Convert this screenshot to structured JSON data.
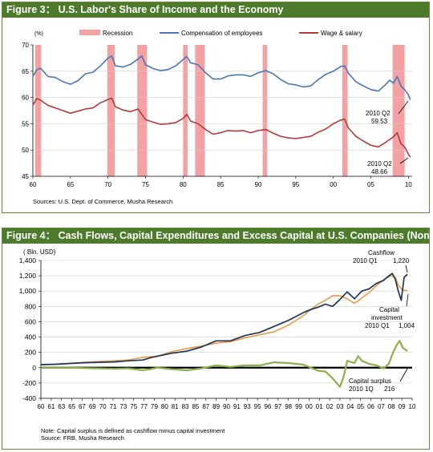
{
  "figure3": {
    "label": "Figure 3：",
    "title": "U.S. Labor's Share of Income and the Economy",
    "unit": "(%)",
    "source": "Sources: U.S. Dept. of Commerce, Musha Research"
  },
  "figure4": {
    "label": "Figure 4：",
    "title": "Cash Flows, Capital Expenditures and Excess Capital at U.S. Companies (Non-financial)",
    "unit": "( Bln. USD)",
    "note": "Note: Capital surplus is defined as cashflow minus capital investment",
    "source": "Source: FRB, Musha Research"
  },
  "colors": {
    "header_bg": "#4e7a2b",
    "recession": "#f4a1a3",
    "compensation": "#4a76b8",
    "wage": "#b43a3a",
    "cashflow": "#1f3556",
    "capital_investment": "#e6a050",
    "capital_surplus": "#8ab14a"
  },
  "chart_data": [
    {
      "type": "line",
      "title": "U.S. Labor's Share of Income and the Economy",
      "ylabel": "(%)",
      "ylim": [
        45,
        70
      ],
      "yticks": [
        "45",
        "50",
        "55",
        "60",
        "65",
        "70"
      ],
      "xlim": [
        1960,
        2010.5
      ],
      "xticks": [
        {
          "x": 1960,
          "label": "60"
        },
        {
          "x": 1965,
          "label": "65"
        },
        {
          "x": 1970,
          "label": "70"
        },
        {
          "x": 1975,
          "label": "75"
        },
        {
          "x": 1980,
          "label": "80"
        },
        {
          "x": 1985,
          "label": "85"
        },
        {
          "x": 1990,
          "label": "90"
        },
        {
          "x": 1995,
          "label": "95"
        },
        {
          "x": 2000,
          "label": "00"
        },
        {
          "x": 2005,
          "label": "05"
        },
        {
          "x": 2010,
          "label": "10"
        }
      ],
      "legend": [
        "Recession",
        "Compensation of employees",
        "Wage & salary"
      ],
      "legend_position": "top",
      "recessions": [
        [
          1960.3,
          1961.1
        ],
        [
          1969.9,
          1970.9
        ],
        [
          1973.9,
          1975.2
        ],
        [
          1980.0,
          1980.6
        ],
        [
          1981.6,
          1982.9
        ],
        [
          1990.6,
          1991.2
        ],
        [
          2001.2,
          2001.9
        ],
        [
          2007.9,
          2009.5
        ]
      ],
      "series": [
        {
          "name": "Compensation of employees",
          "x": [
            1960,
            1960.5,
            1961,
            1962,
            1963,
            1964,
            1965,
            1966,
            1967,
            1968,
            1969,
            1970,
            1970.5,
            1971,
            1972,
            1973,
            1974,
            1974.5,
            1975,
            1976,
            1977,
            1978,
            1979,
            1980,
            1980.5,
            1981,
            1982,
            1983,
            1984,
            1985,
            1986,
            1987,
            1988,
            1989,
            1990,
            1991,
            1992,
            1993,
            1994,
            1995,
            1996,
            1997,
            1998,
            1999,
            2000,
            2001,
            2001.5,
            2002,
            2003,
            2004,
            2005,
            2006,
            2007,
            2007.5,
            2008,
            2008.5,
            2009,
            2009.5,
            2010,
            2010.25
          ],
          "y": [
            64.0,
            65.2,
            65.6,
            64.0,
            63.8,
            63.0,
            62.5,
            63.2,
            64.5,
            64.8,
            66.0,
            67.5,
            67.9,
            66.0,
            65.8,
            66.3,
            67.3,
            67.9,
            66.2,
            65.5,
            65.1,
            65.3,
            66.0,
            67.2,
            67.8,
            66.6,
            66.2,
            64.7,
            63.5,
            63.5,
            64.1,
            64.3,
            64.3,
            64.0,
            64.7,
            65.1,
            64.5,
            63.4,
            62.6,
            62.4,
            62.0,
            62.2,
            63.4,
            64.4,
            65.0,
            65.9,
            66.0,
            64.6,
            63.0,
            62.2,
            61.5,
            61.2,
            62.5,
            63.3,
            62.7,
            64.0,
            62.2,
            61.5,
            60.5,
            59.53
          ]
        },
        {
          "name": "Wage & salary",
          "x": [
            1960,
            1960.5,
            1961,
            1962,
            1963,
            1964,
            1965,
            1966,
            1967,
            1968,
            1969,
            1970,
            1970.5,
            1971,
            1972,
            1973,
            1974,
            1975,
            1976,
            1977,
            1978,
            1979,
            1980,
            1980.5,
            1981,
            1982,
            1983,
            1984,
            1985,
            1986,
            1987,
            1988,
            1989,
            1990,
            1991,
            1992,
            1993,
            1994,
            1995,
            1996,
            1997,
            1998,
            1999,
            2000,
            2001,
            2001.5,
            2002,
            2003,
            2004,
            2005,
            2006,
            2007,
            2008,
            2008.5,
            2009,
            2009.5,
            2010,
            2010.25
          ],
          "y": [
            58.5,
            59.8,
            59.5,
            58.5,
            58.0,
            57.5,
            57.0,
            57.4,
            57.8,
            58.0,
            59.0,
            59.6,
            59.9,
            58.2,
            57.6,
            57.3,
            57.8,
            55.8,
            55.3,
            54.9,
            55.0,
            55.2,
            56.0,
            56.8,
            55.5,
            55.0,
            53.9,
            53.0,
            53.3,
            53.7,
            53.6,
            53.7,
            53.3,
            53.7,
            53.9,
            53.2,
            52.6,
            52.3,
            52.2,
            52.4,
            52.6,
            53.4,
            54.0,
            55.0,
            55.7,
            55.9,
            54.2,
            52.6,
            51.7,
            50.9,
            50.6,
            51.5,
            52.5,
            53.3,
            51.2,
            50.6,
            49.2,
            48.66
          ]
        }
      ],
      "annotations": [
        {
          "text": "2010 Q2",
          "value": "59.53"
        },
        {
          "text": "2010 Q2",
          "value": "48.66"
        }
      ]
    },
    {
      "type": "line",
      "title": "Cash Flows, Capital Expenditures and Excess Capital at U.S. Companies (Non-financial)",
      "ylabel": "( Bln. USD)",
      "ylim": [
        -400,
        1400
      ],
      "yticks": [
        "-400",
        "-200",
        "0",
        "200",
        "400",
        "600",
        "800",
        "1,000",
        "1,200",
        "1,400"
      ],
      "xlim": [
        1960,
        2010.9
      ],
      "xticks": [
        "60",
        "61",
        "63",
        "65",
        "67",
        "69",
        "70",
        "71",
        "73",
        "75",
        "77",
        "79",
        "80",
        "81",
        "83",
        "85",
        "87",
        "89",
        "90",
        "91",
        "93",
        "95",
        "96",
        "97",
        "98",
        "99",
        "00",
        "01",
        "02",
        "03",
        "04",
        "05",
        "06",
        "07",
        "08",
        "09",
        "10"
      ],
      "xtick_positions": [
        1960,
        1961,
        1963,
        1965,
        1967,
        1969,
        1970,
        1971,
        1973,
        1975,
        1977,
        1979,
        1980,
        1981,
        1983,
        1985,
        1987,
        1989,
        1990,
        1991,
        1993,
        1995,
        1996,
        1997,
        1998,
        1999,
        2000,
        2001,
        2002,
        2003,
        2004,
        2005,
        2006,
        2007,
        2008,
        2009,
        2010
      ],
      "series": [
        {
          "name": "Cashflow",
          "x": [
            1960,
            1962,
            1964,
            1966,
            1968,
            1970,
            1972,
            1974,
            1975,
            1976,
            1978,
            1980,
            1982,
            1984,
            1986,
            1988,
            1990,
            1992,
            1994,
            1996,
            1997,
            1998,
            1999,
            2000,
            2001,
            2002,
            2003,
            2004,
            2005,
            2006,
            2007,
            2007.7,
            2008.2,
            2008.6,
            2009,
            2009.4,
            2009.8,
            2010.25
          ],
          "y": [
            40,
            45,
            55,
            65,
            70,
            75,
            90,
            100,
            130,
            150,
            190,
            215,
            270,
            350,
            350,
            420,
            460,
            540,
            620,
            720,
            760,
            790,
            830,
            800,
            890,
            990,
            900,
            1000,
            1030,
            1100,
            1140,
            1200,
            1230,
            1150,
            1000,
            880,
            1180,
            1220
          ]
        },
        {
          "name": "Capital investment",
          "x": [
            1960,
            1962,
            1964,
            1966,
            1968,
            1970,
            1972,
            1974,
            1976,
            1978,
            1980,
            1982,
            1984,
            1986,
            1988,
            1990,
            1992,
            1994,
            1996,
            1997,
            1998,
            1999,
            2000,
            2001,
            2002,
            2003,
            2004,
            2005,
            2006,
            2007,
            2008,
            2008.6,
            2009,
            2009.5,
            2010.25
          ],
          "y": [
            40,
            45,
            55,
            70,
            80,
            90,
            100,
            135,
            150,
            210,
            250,
            280,
            320,
            340,
            390,
            430,
            470,
            560,
            680,
            760,
            830,
            880,
            940,
            940,
            900,
            840,
            910,
            980,
            1070,
            1150,
            1200,
            1180,
            1080,
            1020,
            1004
          ]
        },
        {
          "name": "Capital surplus",
          "x": [
            1960,
            1962,
            1964,
            1966,
            1968,
            1970,
            1972,
            1974,
            1975,
            1976,
            1978,
            1980,
            1982,
            1984,
            1986,
            1988,
            1990,
            1992,
            1994,
            1996,
            1997,
            1998,
            1999,
            2000,
            2001,
            2001.5,
            2002,
            2003,
            2003.5,
            2004,
            2005,
            2006,
            2007,
            2007.7,
            2008.3,
            2008.8,
            2009.2,
            2009.6,
            2010.25
          ],
          "y": [
            0,
            0,
            0,
            -5,
            -10,
            -15,
            -10,
            -35,
            -20,
            0,
            -20,
            -35,
            -10,
            30,
            10,
            30,
            30,
            70,
            60,
            40,
            0,
            -40,
            -50,
            -140,
            -250,
            -120,
            90,
            60,
            150,
            90,
            50,
            30,
            -10,
            50,
            200,
            300,
            350,
            260,
            216
          ]
        }
      ],
      "annotations": [
        {
          "label": "Cashflow",
          "period": "2010 Q1",
          "value": "1,220"
        },
        {
          "label": "Capital",
          "label2": "investment",
          "period": "2010 Q1",
          "value": "1,004"
        },
        {
          "label": "Capital surplus",
          "period": "2010 1Q",
          "value": "216"
        }
      ]
    }
  ]
}
